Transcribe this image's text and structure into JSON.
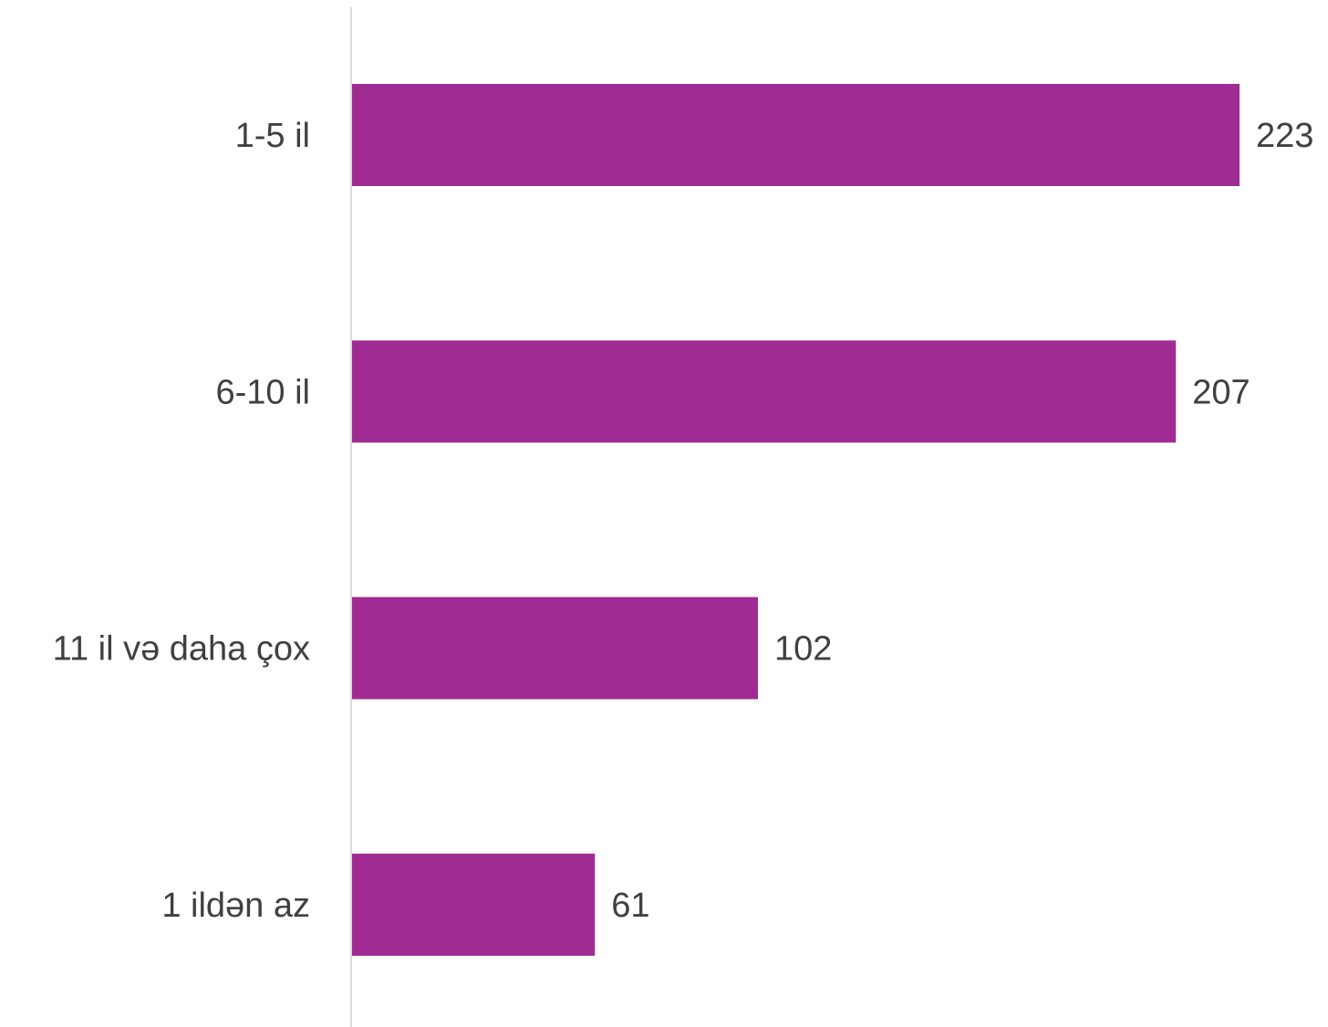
{
  "chart_data": {
    "type": "bar",
    "orientation": "horizontal",
    "categories": [
      "1-5 il",
      "6-10 il",
      "11 il və daha çox",
      "1 ildən az"
    ],
    "values": [
      223,
      207,
      102,
      61
    ],
    "title": "",
    "xlabel": "",
    "ylabel": "",
    "xlim": [
      0,
      223
    ],
    "grid": false,
    "legend": "none",
    "bar_color": "#A02B93",
    "axis_color": "#D9D9D9",
    "text_color": "#404040"
  }
}
